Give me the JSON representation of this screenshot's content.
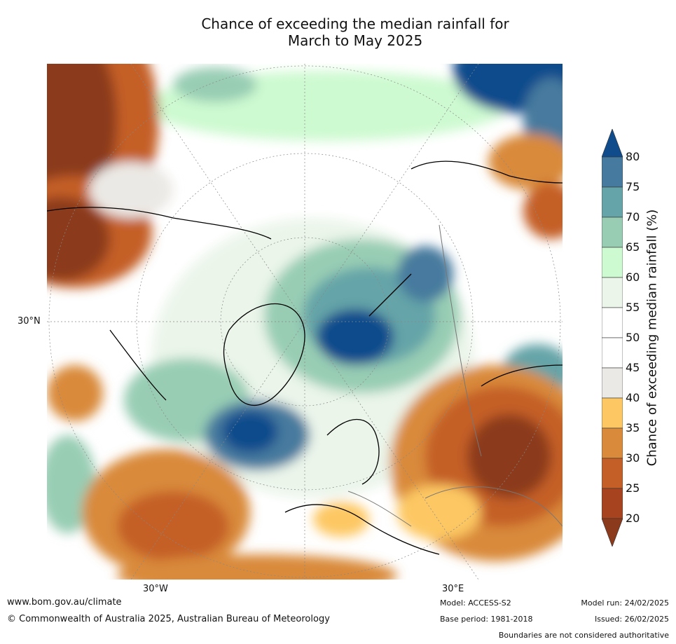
{
  "title": {
    "line1": "Chance of exceeding the median rainfall for",
    "line2": "March to May 2025"
  },
  "map": {
    "projection": "north-polar-stereographic",
    "lat_label": "30°N",
    "lon_labels": [
      "30°W",
      "30°E"
    ]
  },
  "colorbar": {
    "label": "Chance of exceeding median rainfall (%)",
    "ticks": [
      "20",
      "25",
      "30",
      "35",
      "40",
      "45",
      "50",
      "55",
      "60",
      "65",
      "70",
      "75",
      "80"
    ],
    "colors": [
      "#8b3a1c",
      "#a8431f",
      "#c45f28",
      "#d98a3a",
      "#fdc864",
      "#ebe9e5",
      "#ffffff",
      "#ffffff",
      "#ebf5ea",
      "#cdfad0",
      "#98cdb4",
      "#65a4a8",
      "#467a9e",
      "#104c8c"
    ]
  },
  "footer": {
    "url": "www.bom.gov.au/climate",
    "copyright": "© Commonwealth of Australia 2025, Australian Bureau of Meteorology",
    "model": "Model: ACCESS-S2",
    "base_period": "Base period: 1981-2018",
    "model_run": "Model run: 24/02/2025",
    "issued": "Issued: 26/02/2025",
    "disclaimer": "Boundaries are not considered authoritative"
  }
}
